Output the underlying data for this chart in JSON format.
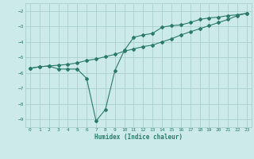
{
  "line1_x": [
    0,
    1,
    2,
    3,
    4,
    5,
    6,
    7,
    8,
    9,
    10,
    11,
    12,
    13,
    14,
    15,
    16,
    17,
    18,
    19,
    20,
    21,
    22,
    23
  ],
  "line1_y": [
    -5.7,
    -5.6,
    -5.55,
    -5.5,
    -5.45,
    -5.35,
    -5.2,
    -5.1,
    -4.95,
    -4.8,
    -4.6,
    -4.45,
    -4.3,
    -4.2,
    -4.0,
    -3.8,
    -3.55,
    -3.35,
    -3.15,
    -2.95,
    -2.75,
    -2.55,
    -2.3,
    -2.15
  ],
  "line2_x": [
    0,
    1,
    2,
    3,
    4,
    5,
    6,
    7,
    8,
    9,
    10,
    11,
    12,
    13,
    14,
    15,
    16,
    17,
    18,
    19,
    20,
    21,
    22,
    23
  ],
  "line2_y": [
    -5.7,
    -5.6,
    -5.55,
    -5.75,
    -5.75,
    -5.75,
    -6.35,
    -9.1,
    -8.35,
    -5.85,
    -4.55,
    -3.7,
    -3.55,
    -3.45,
    -3.05,
    -2.95,
    -2.9,
    -2.75,
    -2.55,
    -2.45,
    -2.4,
    -2.3,
    -2.25,
    -2.15
  ],
  "line_color": "#2a7a6a",
  "bg_color": "#cceaea",
  "grid_color": "#aacece",
  "xlabel": "Humidex (Indice chaleur)",
  "xlim": [
    -0.5,
    23.5
  ],
  "ylim": [
    -9.5,
    -1.5
  ],
  "yticks": [
    -9,
    -8,
    -7,
    -6,
    -5,
    -4,
    -3,
    -2
  ],
  "xticks": [
    0,
    1,
    2,
    3,
    4,
    5,
    6,
    7,
    8,
    9,
    10,
    11,
    12,
    13,
    14,
    15,
    16,
    17,
    18,
    19,
    20,
    21,
    22,
    23
  ],
  "marker": "D",
  "markersize": 2.0,
  "linewidth": 0.8
}
